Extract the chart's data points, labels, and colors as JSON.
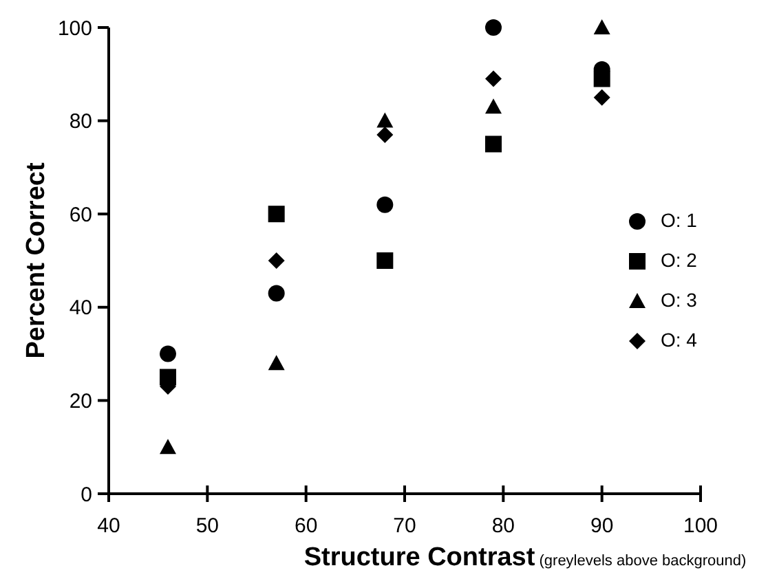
{
  "chart_data": {
    "type": "scatter",
    "xlabel": "Structure Contrast (greylevels above background)",
    "ylabel": "Percent Correct",
    "x": [
      46,
      57,
      68,
      79,
      90
    ],
    "xlim": [
      40,
      100
    ],
    "xticks": [
      40,
      50,
      60,
      70,
      80,
      90,
      100
    ],
    "ylim": [
      0,
      100
    ],
    "yticks": [
      0,
      20,
      40,
      60,
      80,
      100
    ],
    "grid": false,
    "legend": "right",
    "series": [
      {
        "name": "O: 1",
        "color": "#000000",
        "marker": "circle",
        "values": [
          30,
          43,
          62,
          100,
          91
        ]
      },
      {
        "name": "O: 2",
        "color": "#000000",
        "marker": "square",
        "values": [
          25,
          60,
          50,
          75,
          89
        ]
      },
      {
        "name": "O: 3",
        "color": "#000000",
        "marker": "triangle",
        "values": [
          10,
          28,
          80,
          83,
          100
        ]
      },
      {
        "name": "O: 4",
        "color": "#000000",
        "marker": "diamond",
        "values": [
          23,
          50,
          77,
          89,
          85
        ]
      }
    ]
  }
}
